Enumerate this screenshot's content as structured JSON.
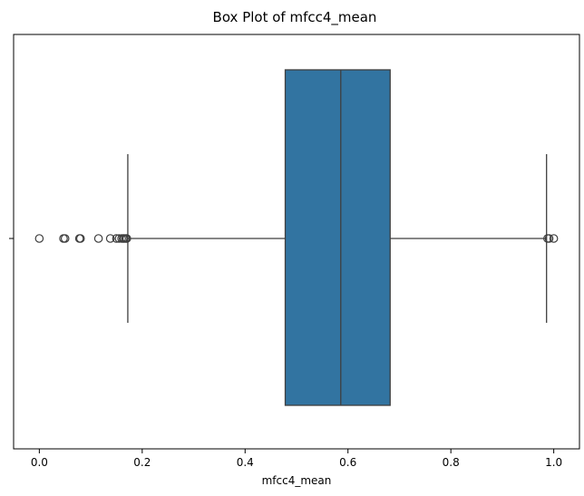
{
  "chart_data": {
    "type": "box",
    "title": "Box Plot of mfcc4_mean",
    "xlabel": "mfcc4_mean",
    "ylabel": "",
    "xlim": [
      -0.05,
      1.05
    ],
    "xticks": [
      0.0,
      0.2,
      0.4,
      0.6,
      0.8,
      1.0
    ],
    "xtick_labels": [
      "0.0",
      "0.2",
      "0.4",
      "0.6",
      "0.8",
      "1.0"
    ],
    "grid": false,
    "box": {
      "whisker_low": 0.172,
      "q1": 0.478,
      "median": 0.586,
      "q3": 0.682,
      "whisker_high": 0.986
    },
    "outliers": [
      0.0,
      0.047,
      0.05,
      0.078,
      0.08,
      0.115,
      0.138,
      0.15,
      0.155,
      0.16,
      0.163,
      0.165,
      0.168,
      0.17,
      0.988,
      0.991,
      1.0
    ],
    "box_color": "#3274a1",
    "line_color": "#3f3f3f"
  }
}
